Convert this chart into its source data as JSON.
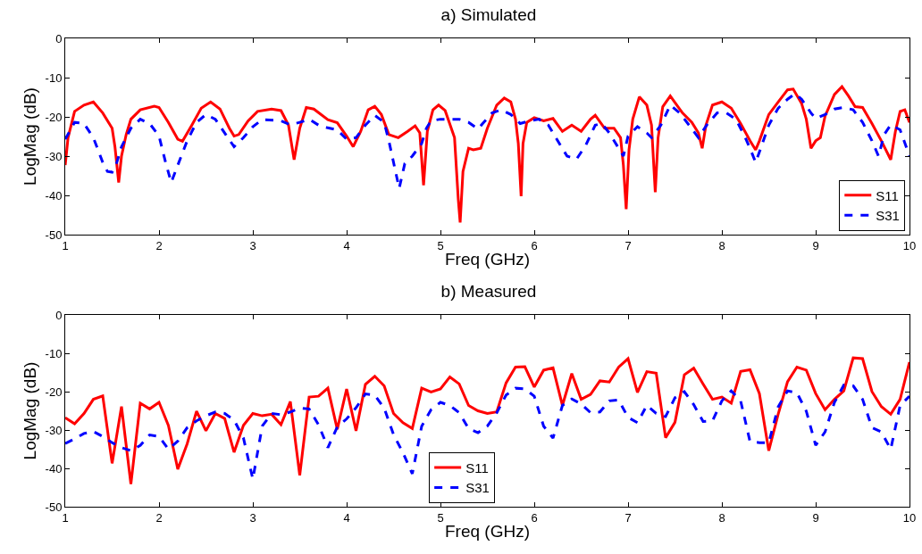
{
  "chart_data": [
    {
      "type": "line",
      "title": "a) Simulated",
      "xlabel": "Freq (GHz)",
      "ylabel": "LogMag (dB)",
      "xlim": [
        1,
        10
      ],
      "ylim": [
        -50,
        0
      ],
      "xticks": [
        1,
        2,
        3,
        4,
        5,
        6,
        7,
        8,
        9,
        10
      ],
      "yticks": [
        -50,
        -40,
        -30,
        -20,
        -10,
        0
      ],
      "grid": false,
      "legend": "bottom right",
      "marker": "none",
      "series": [
        {
          "name": "S11",
          "color": "#ff0000",
          "line_style": "solid",
          "x": [
            1.0,
            1.03,
            1.1,
            1.2,
            1.3,
            1.4,
            1.5,
            1.53,
            1.57,
            1.6,
            1.65,
            1.7,
            1.8,
            1.95,
            2.0,
            2.1,
            2.2,
            2.25,
            2.35,
            2.45,
            2.55,
            2.65,
            2.75,
            2.8,
            2.85,
            2.95,
            3.05,
            3.2,
            3.3,
            3.38,
            3.44,
            3.5,
            3.57,
            3.65,
            3.8,
            3.9,
            4.0,
            4.07,
            4.15,
            4.23,
            4.3,
            4.37,
            4.45,
            4.55,
            4.65,
            4.73,
            4.78,
            4.82,
            4.86,
            4.92,
            4.98,
            5.05,
            5.15,
            5.19,
            5.21,
            5.24,
            5.3,
            5.35,
            5.43,
            5.5,
            5.6,
            5.68,
            5.75,
            5.8,
            5.83,
            5.86,
            5.88,
            5.92,
            6.0,
            6.1,
            6.2,
            6.3,
            6.4,
            6.5,
            6.6,
            6.65,
            6.75,
            6.85,
            6.92,
            6.95,
            6.98,
            7.01,
            7.05,
            7.12,
            7.2,
            7.25,
            7.29,
            7.32,
            7.37,
            7.45,
            7.52,
            7.58,
            7.68,
            7.75,
            7.79,
            7.83,
            7.9,
            8.0,
            8.1,
            8.2,
            8.3,
            8.36,
            8.4,
            8.5,
            8.6,
            8.7,
            8.76,
            8.85,
            8.9,
            8.95,
            9.0,
            9.05,
            9.1,
            9.2,
            9.28,
            9.35,
            9.42,
            9.5,
            9.6,
            9.7,
            9.8,
            9.85,
            9.9,
            9.95,
            10.0
          ],
          "values": [
            -32.3,
            -25.3,
            -18.6,
            -17,
            -16.2,
            -19,
            -22.9,
            -27.6,
            -36.7,
            -30,
            -24.5,
            -20.6,
            -18.2,
            -17.3,
            -17.6,
            -21.4,
            -25.7,
            -26.2,
            -22.1,
            -17.8,
            -16.2,
            -18,
            -22.9,
            -24.9,
            -24.5,
            -21,
            -18.6,
            -18,
            -18.4,
            -22.1,
            -30.9,
            -22.9,
            -17.6,
            -18,
            -20.7,
            -21.5,
            -24.9,
            -27.6,
            -23.7,
            -18.2,
            -17.3,
            -19.4,
            -24.5,
            -25.3,
            -23.7,
            -22.3,
            -24.1,
            -37.4,
            -23.7,
            -18.2,
            -17,
            -18.4,
            -25.3,
            -41,
            -46.9,
            -33.9,
            -28,
            -28.4,
            -28,
            -22.9,
            -17,
            -15.2,
            -16.2,
            -20.6,
            -26.8,
            -40.2,
            -26.8,
            -21.4,
            -20.2,
            -21,
            -20.4,
            -23.7,
            -22.1,
            -23.7,
            -20.6,
            -19.6,
            -22.9,
            -22.9,
            -25.3,
            -32.3,
            -43.5,
            -28.4,
            -20.6,
            -14.9,
            -17,
            -22.1,
            -39.2,
            -25.3,
            -17.4,
            -14.7,
            -17,
            -19,
            -21.4,
            -24.1,
            -28,
            -22.1,
            -17,
            -16.2,
            -17.8,
            -21.7,
            -26.1,
            -28.4,
            -26.1,
            -19.4,
            -16.2,
            -13.1,
            -12.9,
            -16.6,
            -20.6,
            -28,
            -26.1,
            -25.3,
            -19.8,
            -14.3,
            -12.3,
            -14.7,
            -17.4,
            -17.6,
            -21.7,
            -26.1,
            -30.9,
            -23.7,
            -18.6,
            -18.2,
            -21.4
          ]
        },
        {
          "name": "S31",
          "color": "#0000ff",
          "line_style": "dashed",
          "x": [
            1.0,
            1.1,
            1.2,
            1.3,
            1.4,
            1.45,
            1.5,
            1.55,
            1.6,
            1.7,
            1.8,
            1.9,
            2.0,
            2.07,
            2.13,
            2.2,
            2.3,
            2.4,
            2.5,
            2.6,
            2.7,
            2.8,
            2.9,
            3.0,
            3.1,
            3.3,
            3.4,
            3.5,
            3.6,
            3.7,
            3.8,
            3.9,
            4.0,
            4.1,
            4.2,
            4.3,
            4.4,
            4.45,
            4.5,
            4.56,
            4.62,
            4.7,
            4.8,
            4.85,
            4.9,
            5.0,
            5.2,
            5.3,
            5.4,
            5.45,
            5.55,
            5.65,
            5.75,
            5.85,
            5.95,
            6.05,
            6.15,
            6.25,
            6.35,
            6.45,
            6.55,
            6.65,
            6.72,
            6.8,
            6.9,
            6.95,
            7.0,
            7.1,
            7.2,
            7.25,
            7.35,
            7.45,
            7.55,
            7.65,
            7.75,
            7.85,
            7.95,
            8.05,
            8.15,
            8.25,
            8.3,
            8.36,
            8.42,
            8.5,
            8.6,
            8.7,
            8.78,
            8.85,
            8.95,
            9.0,
            9.1,
            9.2,
            9.3,
            9.4,
            9.5,
            9.6,
            9.67,
            9.73,
            9.8,
            9.9,
            10.0
          ],
          "values": [
            -25.7,
            -21.4,
            -21.7,
            -25.3,
            -31.6,
            -33.9,
            -34.1,
            -31.6,
            -27.6,
            -22.9,
            -20.6,
            -21.7,
            -24.9,
            -31.6,
            -36.7,
            -32.3,
            -26.1,
            -21.4,
            -19.4,
            -20.6,
            -24.1,
            -27.6,
            -25.3,
            -22.5,
            -20.7,
            -21,
            -22,
            -21.4,
            -20.6,
            -22.1,
            -22.8,
            -23.3,
            -25.7,
            -25.3,
            -22.1,
            -19.6,
            -21.4,
            -26.1,
            -31.6,
            -38.2,
            -31.9,
            -30,
            -26.8,
            -22.9,
            -21,
            -20.6,
            -20.6,
            -21.4,
            -23.1,
            -21.7,
            -19,
            -18.2,
            -19.4,
            -21.7,
            -21,
            -20.6,
            -22.1,
            -26.1,
            -30,
            -30.8,
            -27.2,
            -22.1,
            -21.7,
            -24.1,
            -28,
            -30,
            -24.9,
            -22.5,
            -24.1,
            -25.3,
            -22.1,
            -17,
            -19,
            -22.1,
            -25.3,
            -21.7,
            -19,
            -19,
            -20.6,
            -25.3,
            -28,
            -31.6,
            -27.6,
            -22.1,
            -17.8,
            -15.5,
            -14.1,
            -15.5,
            -19,
            -20.4,
            -19.4,
            -18,
            -17.6,
            -18.2,
            -21.4,
            -26.1,
            -30,
            -24.5,
            -22,
            -23.3,
            -30
          ]
        }
      ]
    },
    {
      "type": "line",
      "title": "b) Measured",
      "xlabel": "Freq (GHz)",
      "ylabel": "LogMag (dB)",
      "xlim": [
        1,
        10
      ],
      "ylim": [
        -50,
        0
      ],
      "xticks": [
        1,
        2,
        3,
        4,
        5,
        6,
        7,
        8,
        9,
        10
      ],
      "yticks": [
        -50,
        -40,
        -30,
        -20,
        -10,
        0
      ],
      "grid": false,
      "legend": "bottom",
      "marker": "none",
      "x": [
        1.0,
        1.1,
        1.2,
        1.3,
        1.4,
        1.5,
        1.6,
        1.7,
        1.8,
        1.9,
        2.0,
        2.1,
        2.2,
        2.3,
        2.4,
        2.5,
        2.6,
        2.7,
        2.8,
        2.9,
        3.0,
        3.1,
        3.2,
        3.3,
        3.4,
        3.5,
        3.6,
        3.7,
        3.8,
        3.9,
        4.0,
        4.1,
        4.2,
        4.3,
        4.4,
        4.5,
        4.6,
        4.7,
        4.8,
        4.9,
        5.0,
        5.1,
        5.2,
        5.3,
        5.4,
        5.5,
        5.6,
        5.7,
        5.8,
        5.9,
        6.0,
        6.1,
        6.2,
        6.3,
        6.4,
        6.5,
        6.6,
        6.7,
        6.8,
        6.9,
        7.0,
        7.1,
        7.2,
        7.3,
        7.4,
        7.5,
        7.6,
        7.7,
        7.8,
        7.9,
        8.0,
        8.1,
        8.2,
        8.3,
        8.4,
        8.5,
        8.6,
        8.7,
        8.8,
        8.9,
        9.0,
        9.1,
        9.2,
        9.3,
        9.4,
        9.5,
        9.6,
        9.7,
        9.8,
        9.9,
        10.0
      ],
      "series": [
        {
          "name": "S11",
          "color": "#ff0000",
          "line_style": "solid",
          "values": [
            -26.8,
            -28.4,
            -25.7,
            -22,
            -21.1,
            -38.7,
            -23.9,
            -44.1,
            -23,
            -24.5,
            -22.8,
            -28.8,
            -40.2,
            -33.6,
            -25.1,
            -30.2,
            -25.7,
            -27,
            -35.8,
            -28.8,
            -25.7,
            -26.3,
            -25.9,
            -28.6,
            -22.6,
            -41.8,
            -21.4,
            -21.2,
            -19.1,
            -29.8,
            -19.3,
            -30.2,
            -18.1,
            -16,
            -18.5,
            -25.7,
            -28.1,
            -29.6,
            -19.1,
            -20.1,
            -19.3,
            -16.2,
            -18,
            -23.6,
            -25,
            -25.7,
            -25.3,
            -17.7,
            -13.6,
            -13.5,
            -18.8,
            -14.4,
            -13.8,
            -23.6,
            -15.3,
            -22,
            -20.7,
            -17.2,
            -17.5,
            -13.6,
            -11.4,
            -20.2,
            -14.8,
            -15.2,
            -32,
            -28,
            -15.6,
            -13.9,
            -18,
            -22,
            -21.4,
            -23,
            -14.7,
            -14.3,
            -20.5,
            -35.4,
            -25.9,
            -17.4,
            -13.6,
            -14.4,
            -20.5,
            -24.7,
            -22,
            -19.8,
            -11.2,
            -11.4,
            -20,
            -23.9,
            -25.9,
            -22,
            -12.3
          ]
        },
        {
          "name": "S31",
          "color": "#0000ff",
          "line_style": "dashed",
          "values": [
            -33.5,
            -32.3,
            -30.9,
            -30.4,
            -31.7,
            -33.3,
            -34.6,
            -35.4,
            -34,
            -31.3,
            -31.7,
            -35,
            -32.9,
            -29.4,
            -27.6,
            -26.3,
            -25.3,
            -25.7,
            -27.4,
            -32.1,
            -42.8,
            -29,
            -25.7,
            -26,
            -25.3,
            -24.3,
            -24.5,
            -28.6,
            -34.6,
            -29.2,
            -27.1,
            -24.2,
            -20.6,
            -20.9,
            -24.3,
            -31.2,
            -35.9,
            -41.4,
            -29,
            -24.7,
            -22.8,
            -23.6,
            -25.5,
            -29.6,
            -30.7,
            -29,
            -25.5,
            -20.9,
            -19.1,
            -19.3,
            -21.2,
            -29,
            -32.1,
            -23.6,
            -21.9,
            -23.2,
            -25.5,
            -25.3,
            -22.4,
            -22.2,
            -26.7,
            -28.1,
            -23.6,
            -25.7,
            -26.5,
            -21.6,
            -20,
            -23.4,
            -27.8,
            -27.6,
            -22.4,
            -19.8,
            -22.4,
            -33,
            -33.3,
            -33.3,
            -24,
            -19.8,
            -20.3,
            -25.1,
            -34,
            -30.5,
            -22.8,
            -18.3,
            -18.5,
            -22,
            -29.4,
            -30.5,
            -35,
            -23.6,
            -21.2
          ]
        }
      ]
    }
  ]
}
